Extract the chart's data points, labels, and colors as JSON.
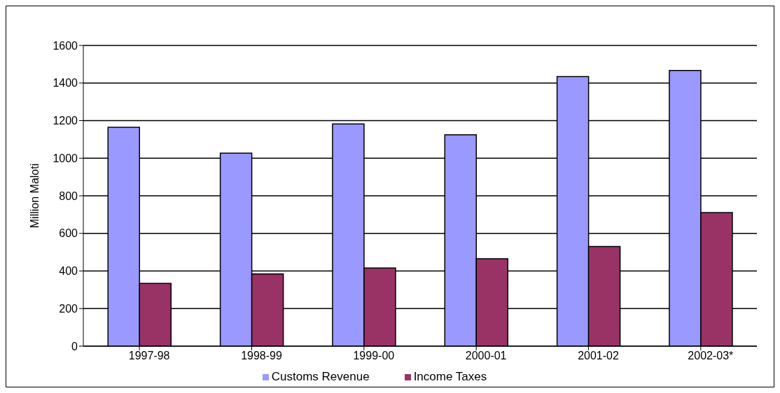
{
  "chart_data": {
    "type": "bar",
    "ylabel": "Million Maloti",
    "categories": [
      "1997-98",
      "1998-99",
      "1999-00",
      "2000-01",
      "2001-02",
      "2002-03*"
    ],
    "series": [
      {
        "name": "Customs Revenue",
        "color": "#9999ff",
        "values": [
          1165,
          1027,
          1182,
          1125,
          1434,
          1467
        ]
      },
      {
        "name": "Income Taxes",
        "color": "#993366",
        "values": [
          334,
          384,
          416,
          465,
          530,
          711
        ]
      }
    ],
    "ylim": [
      0,
      1600
    ],
    "yticks": [
      0,
      200,
      400,
      600,
      800,
      1000,
      1200,
      1400,
      1600
    ],
    "grid": "y",
    "legend": "bottom"
  }
}
